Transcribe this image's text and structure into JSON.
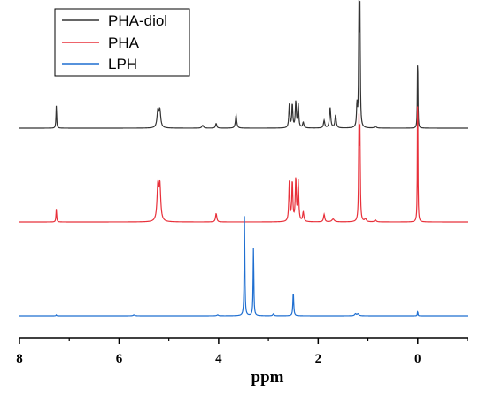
{
  "chart_data": {
    "type": "line",
    "title": "",
    "xlabel": "ppm",
    "ylabel": "",
    "xlim": [
      8,
      -1
    ],
    "x_reversed": true,
    "x_ticks": [
      8,
      6,
      4,
      2,
      0
    ],
    "x_tick_labels": [
      "8",
      "6",
      "4",
      "2",
      "0"
    ],
    "grid": false,
    "legend_position": "top-left",
    "legend": [
      {
        "name": "PHA-diol",
        "color": "#333333"
      },
      {
        "name": "PHA",
        "color": "#e8303a"
      },
      {
        "name": "LPH",
        "color": "#1f6fd1"
      }
    ],
    "series": [
      {
        "name": "PHA-diol",
        "color": "#333333",
        "offset": 2.0,
        "peaks": [
          {
            "x": 7.26,
            "h": 0.24,
            "w": 0.008
          },
          {
            "x": 5.22,
            "h": 0.18,
            "w": 0.02
          },
          {
            "x": 5.18,
            "h": 0.18,
            "w": 0.02
          },
          {
            "x": 4.32,
            "h": 0.03,
            "w": 0.02
          },
          {
            "x": 4.05,
            "h": 0.05,
            "w": 0.015
          },
          {
            "x": 3.65,
            "h": 0.14,
            "w": 0.015
          },
          {
            "x": 2.58,
            "h": 0.25,
            "w": 0.012
          },
          {
            "x": 2.52,
            "h": 0.25,
            "w": 0.012
          },
          {
            "x": 2.45,
            "h": 0.28,
            "w": 0.012
          },
          {
            "x": 2.4,
            "h": 0.25,
            "w": 0.012
          },
          {
            "x": 2.3,
            "h": 0.06,
            "w": 0.015
          },
          {
            "x": 1.88,
            "h": 0.08,
            "w": 0.015
          },
          {
            "x": 1.76,
            "h": 0.22,
            "w": 0.015
          },
          {
            "x": 1.65,
            "h": 0.14,
            "w": 0.015
          },
          {
            "x": 1.22,
            "h": 0.24,
            "w": 0.01
          },
          {
            "x": 1.18,
            "h": 1.23,
            "w": 0.008
          },
          {
            "x": 1.16,
            "h": 1.18,
            "w": 0.008
          },
          {
            "x": 0.85,
            "h": 0.02,
            "w": 0.02
          },
          {
            "x": 0.0,
            "h": 0.82,
            "w": 0.006
          }
        ]
      },
      {
        "name": "PHA",
        "color": "#e8303a",
        "offset": 1.0,
        "peaks": [
          {
            "x": 7.26,
            "h": 0.14,
            "w": 0.008
          },
          {
            "x": 5.22,
            "h": 0.37,
            "w": 0.02
          },
          {
            "x": 5.18,
            "h": 0.37,
            "w": 0.02
          },
          {
            "x": 4.05,
            "h": 0.09,
            "w": 0.015
          },
          {
            "x": 2.58,
            "h": 0.42,
            "w": 0.012
          },
          {
            "x": 2.52,
            "h": 0.42,
            "w": 0.012
          },
          {
            "x": 2.45,
            "h": 0.45,
            "w": 0.012
          },
          {
            "x": 2.4,
            "h": 0.42,
            "w": 0.012
          },
          {
            "x": 2.3,
            "h": 0.1,
            "w": 0.015
          },
          {
            "x": 1.88,
            "h": 0.08,
            "w": 0.015
          },
          {
            "x": 1.7,
            "h": 0.03,
            "w": 0.03
          },
          {
            "x": 1.18,
            "h": 1.03,
            "w": 0.008
          },
          {
            "x": 1.16,
            "h": 0.9,
            "w": 0.008
          },
          {
            "x": 1.05,
            "h": 0.03,
            "w": 0.02
          },
          {
            "x": 0.85,
            "h": 0.02,
            "w": 0.02
          },
          {
            "x": 0.0,
            "h": 1.51,
            "w": 0.006
          }
        ]
      },
      {
        "name": "LPH",
        "color": "#1f6fd1",
        "offset": 0.0,
        "peaks": [
          {
            "x": 7.26,
            "h": 0.01,
            "w": 0.008
          },
          {
            "x": 5.7,
            "h": 0.01,
            "w": 0.02
          },
          {
            "x": 4.02,
            "h": 0.01,
            "w": 0.02
          },
          {
            "x": 3.48,
            "h": 1.07,
            "w": 0.008
          },
          {
            "x": 3.3,
            "h": 0.73,
            "w": 0.008
          },
          {
            "x": 2.9,
            "h": 0.02,
            "w": 0.015
          },
          {
            "x": 2.5,
            "h": 0.25,
            "w": 0.01
          },
          {
            "x": 1.25,
            "h": 0.02,
            "w": 0.02
          },
          {
            "x": 1.2,
            "h": 0.02,
            "w": 0.02
          },
          {
            "x": 0.0,
            "h": 0.05,
            "w": 0.006
          }
        ]
      }
    ]
  }
}
